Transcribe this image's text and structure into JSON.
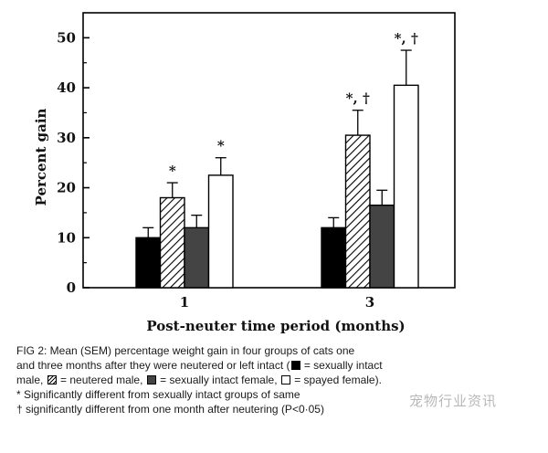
{
  "chart_data": {
    "type": "bar",
    "title": "",
    "xlabel": "Post-neuter time period (months)",
    "ylabel": "Percent gain",
    "ylim": [
      0,
      55
    ],
    "yticks": [
      0,
      10,
      20,
      30,
      40,
      50
    ],
    "categories": [
      "1",
      "3"
    ],
    "series": [
      {
        "key": "sexually-intact-male",
        "fill": "#000000",
        "pattern": "solid",
        "values": [
          10,
          12
        ],
        "errors": [
          2,
          2
        ],
        "marks": [
          "",
          ""
        ]
      },
      {
        "key": "neutered-male",
        "fill": "#ffffff",
        "pattern": "hatch",
        "values": [
          18,
          30.5
        ],
        "errors": [
          3,
          5
        ],
        "marks": [
          "*",
          "*, †"
        ]
      },
      {
        "key": "sexually-intact-female",
        "fill": "#444444",
        "pattern": "dark",
        "values": [
          12,
          16.5
        ],
        "errors": [
          2.5,
          3
        ],
        "marks": [
          "",
          ""
        ]
      },
      {
        "key": "spayed-female",
        "fill": "#ffffff",
        "pattern": "open",
        "values": [
          22.5,
          40.5
        ],
        "errors": [
          3.5,
          7
        ],
        "marks": [
          "*",
          "*, †"
        ]
      }
    ],
    "grid": false,
    "legend": "caption"
  },
  "caption": {
    "line1_a": "FIG 2: Mean (SEM) percentage weight gain in four groups of cats one",
    "line2_a": "and three months after they were neutered or left intact (",
    "key_black": "= sexually intact",
    "line3_a": "male,",
    "key_hatch": "= neutered male,",
    "key_dark": "= sexually intact female,",
    "key_white": "= spayed female).",
    "footnote1": "* Significantly different from sexually intact groups of same",
    "footnote2": "† significantly different from one month after neutering (P<0·05)"
  },
  "watermark": "宠物行业资讯"
}
